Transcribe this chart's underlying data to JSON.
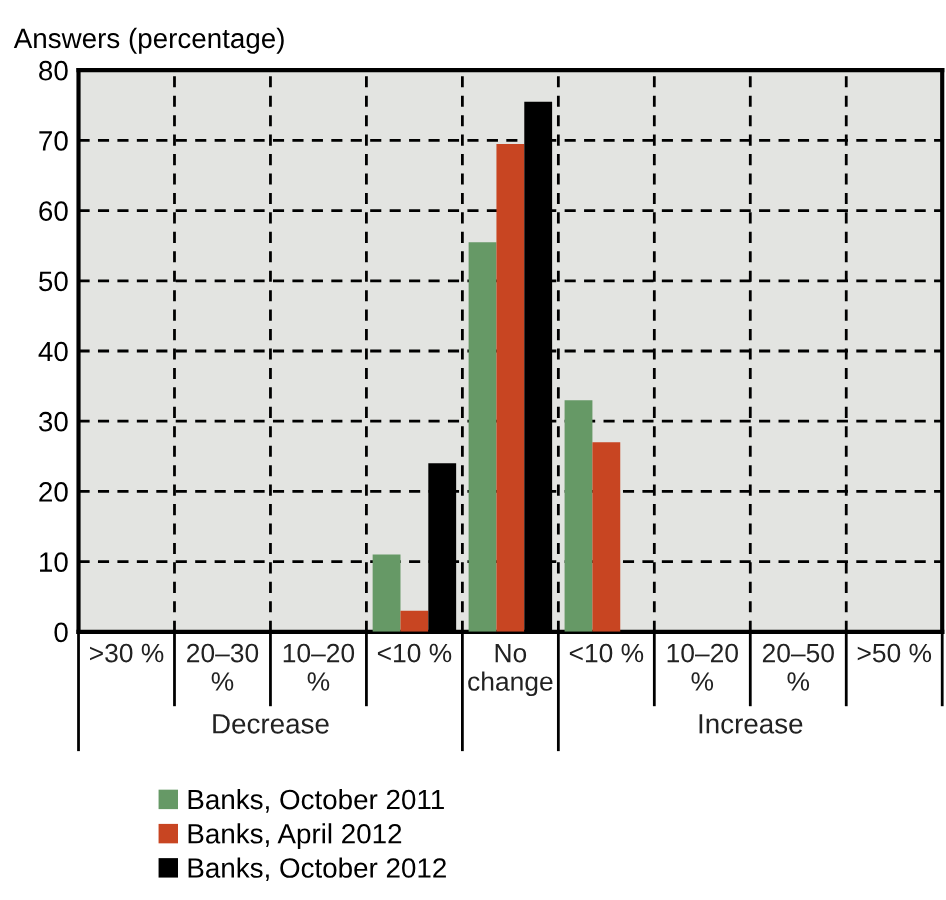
{
  "chart_data": {
    "type": "bar",
    "ylabel": "Answers (percentage)",
    "categories": [
      ">30 %",
      "20–30 %",
      "10–20 %",
      "<10 %",
      "No change",
      "<10 %",
      "10–20 %",
      "20–50 %",
      ">50 %"
    ],
    "series": [
      {
        "name": "Banks, October 2011",
        "color": "#669966",
        "values": [
          0,
          0,
          0,
          11,
          55.5,
          33,
          0,
          0,
          0
        ]
      },
      {
        "name": "Banks, April 2012",
        "color": "#c84522",
        "values": [
          0,
          0,
          0,
          3,
          69.5,
          27,
          0,
          0,
          0
        ]
      },
      {
        "name": "Banks, October 2012",
        "color": "#000000",
        "values": [
          0,
          0,
          0,
          24,
          75.5,
          0,
          0,
          0,
          0
        ]
      }
    ],
    "annotations": [
      "Decrease",
      "Increase"
    ],
    "ylim": [
      0,
      80
    ],
    "yticks": [
      0,
      10,
      20,
      30,
      40,
      50,
      60,
      70,
      80
    ],
    "grid": true,
    "legend": "bottom left"
  }
}
